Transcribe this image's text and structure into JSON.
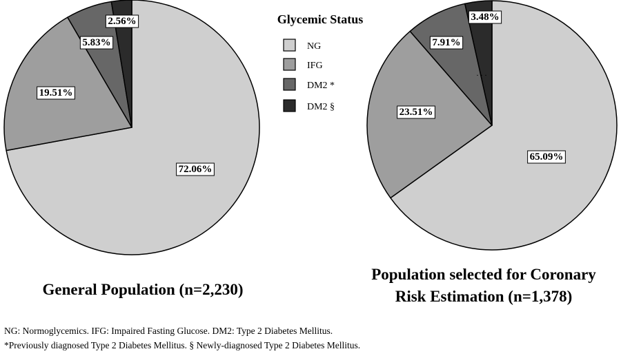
{
  "legend": {
    "title": "Glycemic Status",
    "items": [
      {
        "label": "NG",
        "color": "#cfcfcf"
      },
      {
        "label": "IFG",
        "color": "#9e9e9e"
      },
      {
        "label": "DM2 *",
        "color": "#676767"
      },
      {
        "label": "DM2 §",
        "color": "#2b2b2b"
      }
    ]
  },
  "chart_data": [
    {
      "type": "pie",
      "title": "General Population (n=2,230)",
      "categories": [
        "NG",
        "IFG",
        "DM2 *",
        "DM2 §"
      ],
      "values": [
        72.06,
        19.51,
        5.83,
        2.56
      ],
      "labels": [
        "72.06%",
        "19.51%",
        "5.83%",
        "2.56%"
      ],
      "colors": [
        "#cfcfcf",
        "#9e9e9e",
        "#676767",
        "#2b2b2b"
      ],
      "legend": "top-center"
    },
    {
      "type": "pie",
      "title": "Population selected for Coronary Risk Estimation (n=1,378)",
      "title_lines": [
        "Population selected for Coronary",
        "Risk Estimation (n=1,378)"
      ],
      "categories": [
        "NG",
        "IFG",
        "DM2 *",
        "DM2 §"
      ],
      "values": [
        65.09,
        23.51,
        7.91,
        3.48
      ],
      "labels": [
        "65.09%",
        "23.51%",
        "7.91%",
        "3.48%"
      ],
      "colors": [
        "#cfcfcf",
        "#9e9e9e",
        "#676767",
        "#2b2b2b"
      ],
      "legend": "top-center"
    }
  ],
  "footnotes": [
    "NG: Normoglycemics. IFG: Impaired Fasting Glucose. DM2: Type 2 Diabetes Mellitus.",
    "*Previously diagnosed Type 2 Diabetes Mellitus. § Newly-diagnosed Type 2 Diabetes Mellitus."
  ]
}
